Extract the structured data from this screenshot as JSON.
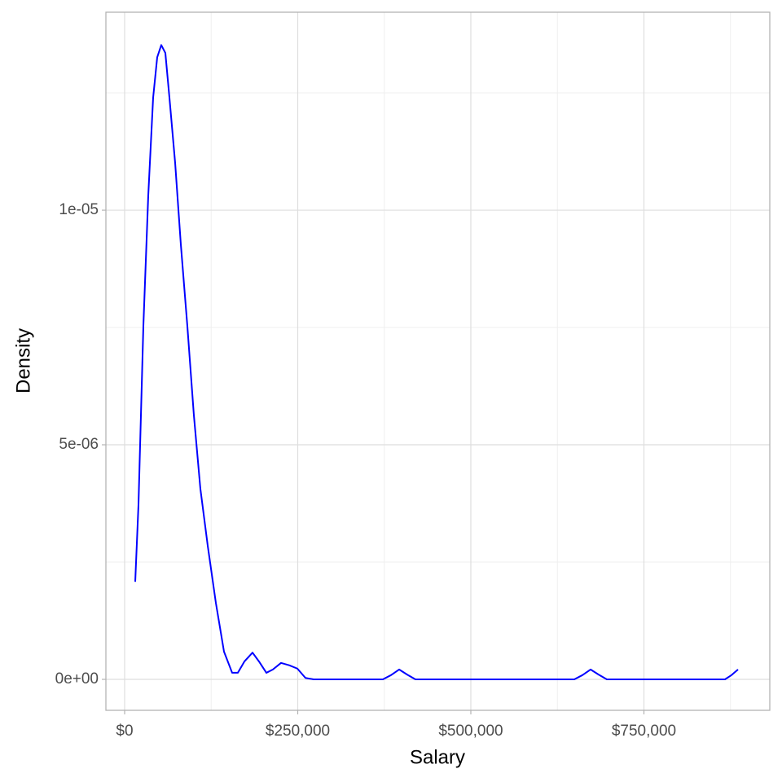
{
  "chart_data": {
    "type": "line",
    "x_label": "Salary",
    "y_label": "Density",
    "x": [
      15294,
      20000,
      27059,
      34118,
      41176,
      47059,
      52941,
      58824,
      64706,
      72941,
      81176,
      90588,
      100000,
      109412,
      120000,
      131765,
      143529,
      155294,
      163529,
      172941,
      184706,
      194118,
      204706,
      214118,
      225882,
      237647,
      249412,
      261176,
      272941,
      372941,
      384706,
      396471,
      408235,
      420000,
      649412,
      661176,
      672941,
      684706,
      696471,
      867059,
      876471,
      885882
    ],
    "series": [
      {
        "color": "#0000ff",
        "values": [
          2.08e-06,
          3.72e-06,
          7.53e-06,
          1.031e-05,
          1.24e-05,
          1.326e-05,
          1.352e-05,
          1.335e-05,
          1.24e-05,
          1.101e-05,
          9.27e-06,
          7.53e-06,
          5.63e-06,
          4.06e-06,
          2.85e-06,
          1.63e-06,
          5.9e-07,
          1.4e-07,
          1.4e-07,
          3.8e-07,
          5.7e-07,
          3.8e-07,
          1.4e-07,
          2.1e-07,
          3.5e-07,
          3e-07,
          2.3e-07,
          3e-08,
          0,
          0,
          9e-08,
          2.1e-07,
          1e-07,
          0,
          0,
          9e-08,
          2.1e-07,
          1e-07,
          0,
          0,
          9e-08,
          2.1e-07
        ]
      }
    ],
    "xlim": [
      -27059,
      931765
    ],
    "ylim": [
      -6.6e-07,
      1.422e-05
    ],
    "xticks": [
      {
        "value": 0,
        "label": "$0"
      },
      {
        "value": 250000,
        "label": "$250,000"
      },
      {
        "value": 500000,
        "label": "$500,000"
      },
      {
        "value": 750000,
        "label": "$750,000"
      }
    ],
    "yticks": [
      {
        "value": 0,
        "label": "0e+00"
      },
      {
        "value": 5e-06,
        "label": "5e-06"
      },
      {
        "value": 1e-05,
        "label": "1e-05"
      }
    ],
    "x_minor_ticks": [
      125000,
      375000,
      625000,
      875000
    ],
    "y_minor_ticks": [
      2.5e-06,
      7.5e-06,
      1.25e-05
    ],
    "grid": true
  }
}
